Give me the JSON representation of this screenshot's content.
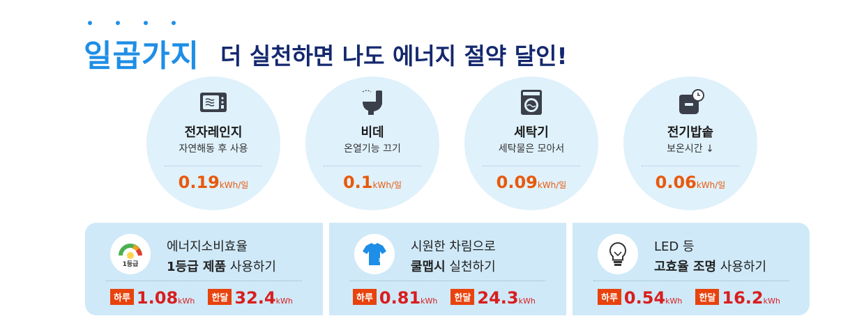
{
  "title": {
    "accent": "일곱가지",
    "rest": "더 실천하면 나도 에너지 절약 달인!"
  },
  "appliances": [
    {
      "icon": "microwave-icon",
      "name": "전자레인지",
      "desc": "자연해동 후 사용",
      "value": "0.19",
      "unit": "kWh/일"
    },
    {
      "icon": "bidet-icon",
      "name": "비데",
      "desc": "온열기능 끄기",
      "value": "0.1",
      "unit": "kWh/일"
    },
    {
      "icon": "washing-machine-icon",
      "name": "세탁기",
      "desc": "세탁물은 모아서",
      "value": "0.09",
      "unit": "kWh/일"
    },
    {
      "icon": "rice-cooker-icon",
      "name": "전기밥솥",
      "desc": "보온시간 ↓",
      "value": "0.06",
      "unit": "kWh/일"
    }
  ],
  "tips": [
    {
      "icon": "energy-grade-gauge-icon",
      "badge": "1등급",
      "line1": "에너지소비효율",
      "bold": "1등급 제품",
      "rest": " 사용하기",
      "day_label": "하루",
      "day_value": "1.08",
      "month_label": "한달",
      "month_value": "32.4",
      "unit": "kWh"
    },
    {
      "icon": "cool-shirt-icon",
      "line1": "시원한 차림으로",
      "bold": "쿨맵시",
      "rest": " 실천하기",
      "day_label": "하루",
      "day_value": "0.81",
      "month_label": "한달",
      "month_value": "24.3",
      "unit": "kWh"
    },
    {
      "icon": "led-bulb-icon",
      "line1": "LED 등",
      "bold": "고효율 조명",
      "rest": " 사용하기",
      "day_label": "하루",
      "day_value": "0.54",
      "month_label": "한달",
      "month_value": "16.2",
      "unit": "kWh"
    }
  ],
  "colors": {
    "accent_blue": "#1e8ee6",
    "navy": "#14286e",
    "orange": "#e8590c",
    "red": "#d81e1e",
    "tag_red": "#e8430d",
    "light_blue": "#dff1fb",
    "panel_blue": "#cfe9f8"
  }
}
